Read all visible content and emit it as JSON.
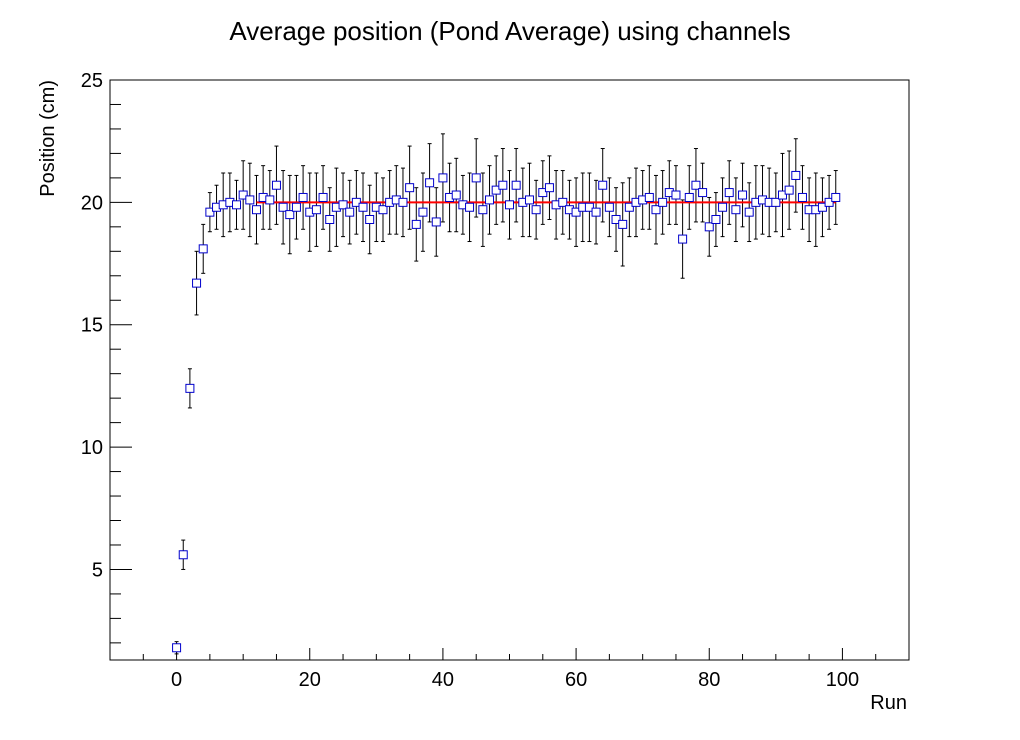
{
  "chart_data": {
    "type": "scatter",
    "title": "Average position (Pond Average) using channels",
    "xlabel": "Run",
    "ylabel": "Position (cm)",
    "xlim": [
      -10,
      110
    ],
    "ylim": [
      1.3,
      25
    ],
    "x_ticks": [
      0,
      20,
      40,
      60,
      80,
      100
    ],
    "y_ticks": [
      5,
      10,
      15,
      20,
      25
    ],
    "grid": false,
    "legend": "none",
    "marker": "open-square",
    "marker_color": "#0000cc",
    "errorbar_color": "#000000",
    "fit": {
      "type": "constant",
      "value": 20.0,
      "x_range": [
        12,
        99
      ],
      "color": "#ff0000"
    },
    "series": [
      {
        "x": [
          0,
          1,
          2,
          3,
          4,
          5,
          6,
          7,
          8,
          9,
          10,
          11,
          12,
          13,
          14,
          15,
          16,
          17,
          18,
          19,
          20,
          21,
          22,
          23,
          24,
          25,
          26,
          27,
          28,
          29,
          30,
          31,
          32,
          33,
          34,
          35,
          36,
          37,
          38,
          39,
          40,
          41,
          42,
          43,
          44,
          45,
          46,
          47,
          48,
          49,
          50,
          51,
          52,
          53,
          54,
          55,
          56,
          57,
          58,
          59,
          60,
          61,
          62,
          63,
          64,
          65,
          66,
          67,
          68,
          69,
          70,
          71,
          72,
          73,
          74,
          75,
          76,
          77,
          78,
          79,
          80,
          81,
          82,
          83,
          84,
          85,
          86,
          87,
          88,
          89,
          90,
          91,
          92,
          93,
          94,
          95,
          96,
          97,
          98,
          99
        ],
        "y": [
          1.8,
          5.6,
          12.4,
          16.7,
          18.1,
          19.6,
          19.8,
          19.9,
          20.0,
          19.9,
          20.3,
          20.1,
          19.7,
          20.2,
          20.1,
          20.7,
          19.8,
          19.5,
          19.8,
          20.2,
          19.6,
          19.7,
          20.2,
          19.3,
          19.8,
          19.9,
          19.6,
          20.0,
          19.8,
          19.3,
          19.8,
          19.7,
          20.0,
          20.1,
          20.0,
          20.6,
          19.1,
          19.6,
          20.8,
          19.2,
          21.0,
          20.2,
          20.3,
          19.9,
          19.8,
          21.0,
          19.7,
          20.1,
          20.5,
          20.7,
          19.9,
          20.7,
          20.0,
          20.1,
          19.7,
          20.4,
          20.6,
          19.9,
          20.0,
          19.7,
          19.6,
          19.8,
          19.8,
          19.6,
          20.7,
          19.8,
          19.3,
          19.1,
          19.8,
          20.0,
          20.1,
          20.2,
          19.7,
          20.0,
          20.4,
          20.3,
          18.5,
          20.2,
          20.7,
          20.4,
          19.0,
          19.3,
          19.8,
          20.4,
          19.7,
          20.3,
          19.6,
          20.0,
          20.1,
          20.0,
          20.0,
          20.3,
          20.5,
          21.1,
          20.2,
          19.7,
          19.7,
          19.8,
          20.0,
          20.2
        ],
        "yerr": [
          0.25,
          0.6,
          0.8,
          1.3,
          1.0,
          0.8,
          0.9,
          1.3,
          1.2,
          1.0,
          1.4,
          1.5,
          1.4,
          1.3,
          1.2,
          1.6,
          1.5,
          1.6,
          1.3,
          1.3,
          1.6,
          1.5,
          1.3,
          1.3,
          1.6,
          1.3,
          1.3,
          1.3,
          1.4,
          1.4,
          1.4,
          1.3,
          1.3,
          1.4,
          1.4,
          1.7,
          1.5,
          1.6,
          1.6,
          1.4,
          1.8,
          1.4,
          1.5,
          1.2,
          1.4,
          1.6,
          1.5,
          1.4,
          1.4,
          1.5,
          1.4,
          1.5,
          1.4,
          1.5,
          1.2,
          1.3,
          1.3,
          1.4,
          1.3,
          1.2,
          1.4,
          1.4,
          1.4,
          1.3,
          1.5,
          1.2,
          1.3,
          1.7,
          1.2,
          1.4,
          1.2,
          1.3,
          1.4,
          1.3,
          1.3,
          1.2,
          1.6,
          1.3,
          1.5,
          1.2,
          1.2,
          1.1,
          1.2,
          1.3,
          1.3,
          1.3,
          1.2,
          1.5,
          1.4,
          1.4,
          1.2,
          1.7,
          1.6,
          1.5,
          1.3,
          1.3,
          1.5,
          1.2,
          1.1,
          1.1
        ]
      }
    ]
  }
}
